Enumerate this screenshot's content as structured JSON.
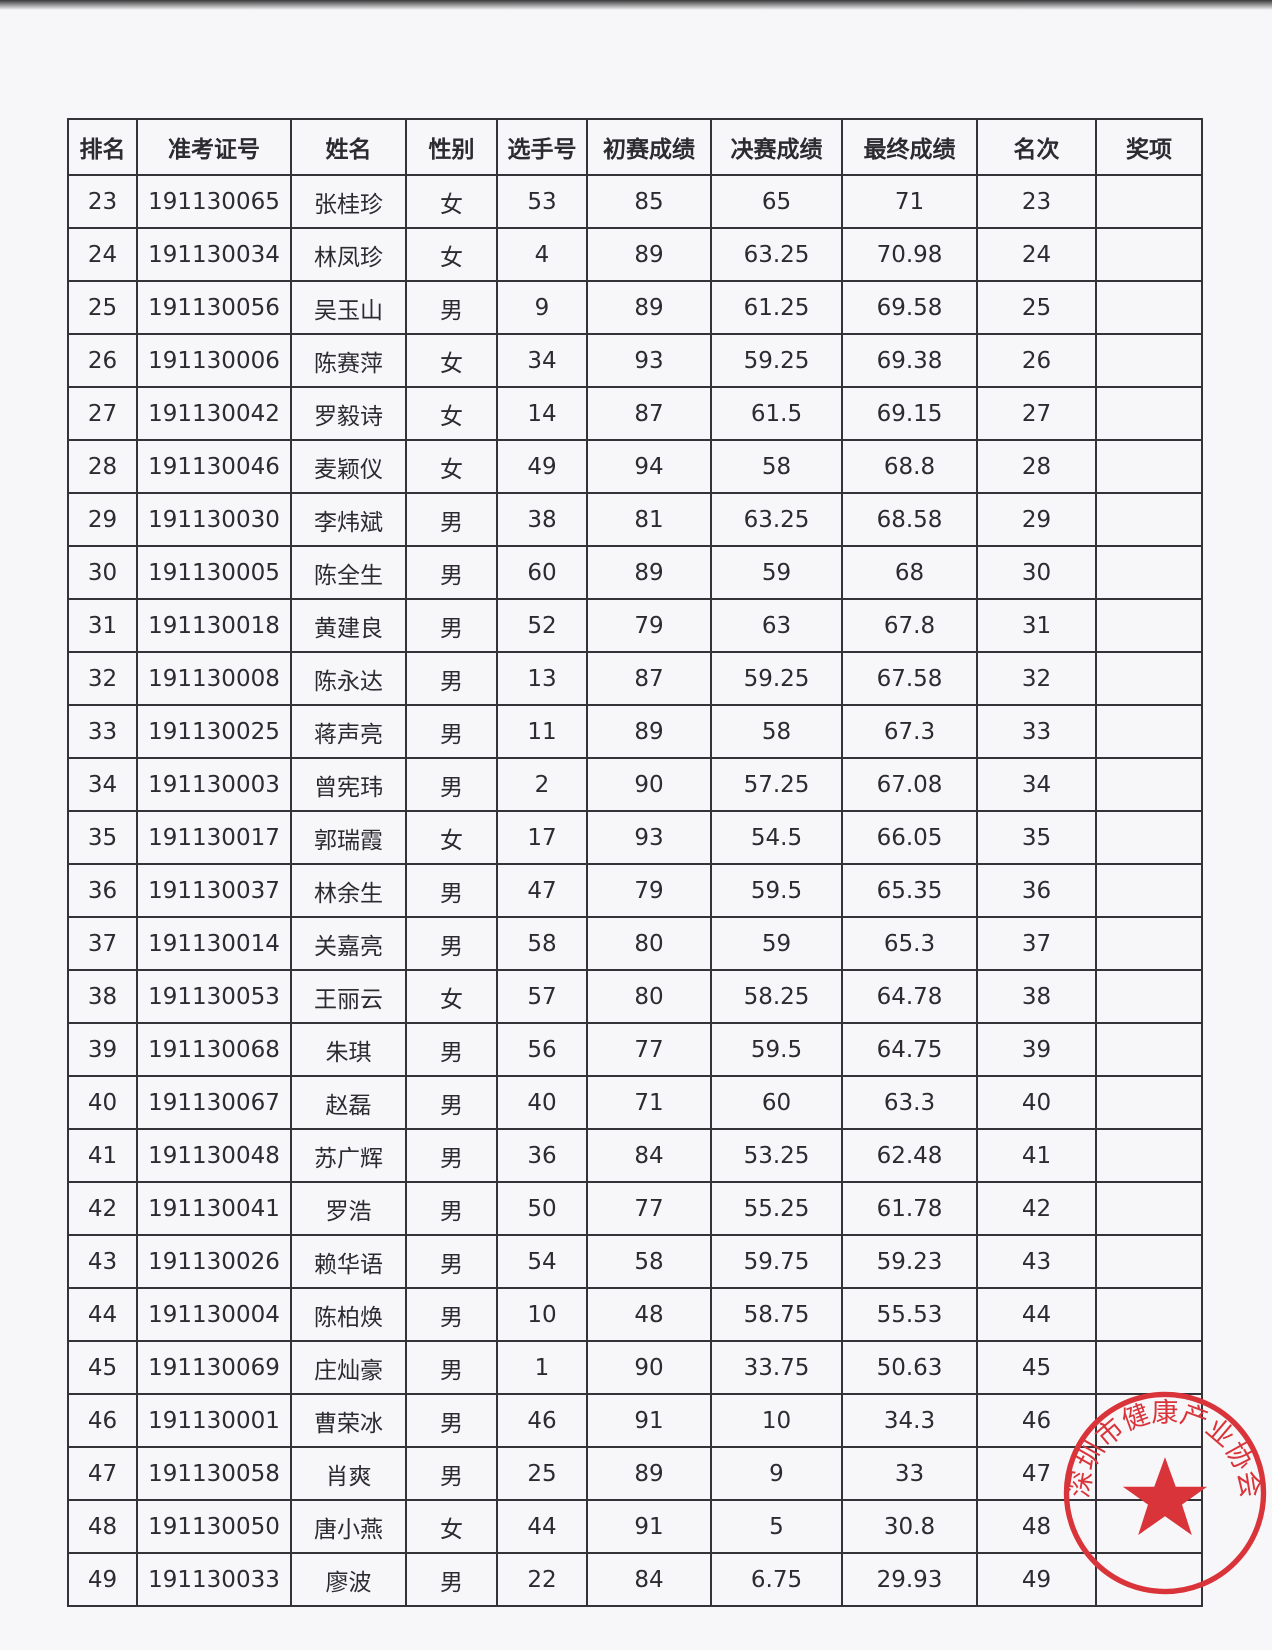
{
  "table": {
    "headers": [
      "排名",
      "准考证号",
      "姓名",
      "性别",
      "选手号",
      "初赛成绩",
      "决赛成绩",
      "最终成绩",
      "名次",
      "奖项"
    ],
    "rows": [
      [
        "23",
        "191130065",
        "张桂珍",
        "女",
        "53",
        "85",
        "65",
        "71",
        "23",
        ""
      ],
      [
        "24",
        "191130034",
        "林凤珍",
        "女",
        "4",
        "89",
        "63.25",
        "70.98",
        "24",
        ""
      ],
      [
        "25",
        "191130056",
        "吴玉山",
        "男",
        "9",
        "89",
        "61.25",
        "69.58",
        "25",
        ""
      ],
      [
        "26",
        "191130006",
        "陈赛萍",
        "女",
        "34",
        "93",
        "59.25",
        "69.38",
        "26",
        ""
      ],
      [
        "27",
        "191130042",
        "罗毅诗",
        "女",
        "14",
        "87",
        "61.5",
        "69.15",
        "27",
        ""
      ],
      [
        "28",
        "191130046",
        "麦颖仪",
        "女",
        "49",
        "94",
        "58",
        "68.8",
        "28",
        ""
      ],
      [
        "29",
        "191130030",
        "李炜斌",
        "男",
        "38",
        "81",
        "63.25",
        "68.58",
        "29",
        ""
      ],
      [
        "30",
        "191130005",
        "陈全生",
        "男",
        "60",
        "89",
        "59",
        "68",
        "30",
        ""
      ],
      [
        "31",
        "191130018",
        "黄建良",
        "男",
        "52",
        "79",
        "63",
        "67.8",
        "31",
        ""
      ],
      [
        "32",
        "191130008",
        "陈永达",
        "男",
        "13",
        "87",
        "59.25",
        "67.58",
        "32",
        ""
      ],
      [
        "33",
        "191130025",
        "蒋声亮",
        "男",
        "11",
        "89",
        "58",
        "67.3",
        "33",
        ""
      ],
      [
        "34",
        "191130003",
        "曾宪玮",
        "男",
        "2",
        "90",
        "57.25",
        "67.08",
        "34",
        ""
      ],
      [
        "35",
        "191130017",
        "郭瑞霞",
        "女",
        "17",
        "93",
        "54.5",
        "66.05",
        "35",
        ""
      ],
      [
        "36",
        "191130037",
        "林余生",
        "男",
        "47",
        "79",
        "59.5",
        "65.35",
        "36",
        ""
      ],
      [
        "37",
        "191130014",
        "关嘉亮",
        "男",
        "58",
        "80",
        "59",
        "65.3",
        "37",
        ""
      ],
      [
        "38",
        "191130053",
        "王丽云",
        "女",
        "57",
        "80",
        "58.25",
        "64.78",
        "38",
        ""
      ],
      [
        "39",
        "191130068",
        "朱琪",
        "男",
        "56",
        "77",
        "59.5",
        "64.75",
        "39",
        ""
      ],
      [
        "40",
        "191130067",
        "赵磊",
        "男",
        "40",
        "71",
        "60",
        "63.3",
        "40",
        ""
      ],
      [
        "41",
        "191130048",
        "苏广辉",
        "男",
        "36",
        "84",
        "53.25",
        "62.48",
        "41",
        ""
      ],
      [
        "42",
        "191130041",
        "罗浩",
        "男",
        "50",
        "77",
        "55.25",
        "61.78",
        "42",
        ""
      ],
      [
        "43",
        "191130026",
        "赖华语",
        "男",
        "54",
        "58",
        "59.75",
        "59.23",
        "43",
        ""
      ],
      [
        "44",
        "191130004",
        "陈柏焕",
        "男",
        "10",
        "48",
        "58.75",
        "55.53",
        "44",
        ""
      ],
      [
        "45",
        "191130069",
        "庄灿豪",
        "男",
        "1",
        "90",
        "33.75",
        "50.63",
        "45",
        ""
      ],
      [
        "46",
        "191130001",
        "曹荣冰",
        "男",
        "46",
        "91",
        "10",
        "34.3",
        "46",
        ""
      ],
      [
        "47",
        "191130058",
        "肖爽",
        "男",
        "25",
        "89",
        "9",
        "33",
        "47",
        ""
      ],
      [
        "48",
        "191130050",
        "唐小燕",
        "女",
        "44",
        "91",
        "5",
        "30.8",
        "48",
        ""
      ],
      [
        "49",
        "191130033",
        "廖波",
        "男",
        "22",
        "84",
        "6.75",
        "29.93",
        "49",
        ""
      ]
    ]
  },
  "stamp": {
    "text": "深圳市健康产业协会",
    "color": "#d9343a"
  }
}
